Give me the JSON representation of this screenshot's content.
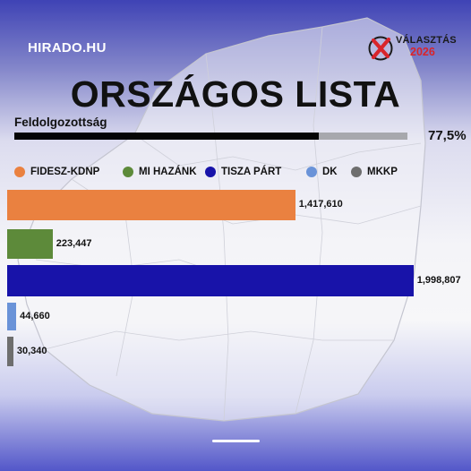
{
  "brand": {
    "name": "HIRADO.HU"
  },
  "logo": {
    "word": "VÁLASZTÁS",
    "year": "2026",
    "icon": "x-ballot-icon"
  },
  "title": "ORSZÁGOS LISTA",
  "progress": {
    "label": "Feldolgozottság",
    "value_text": "77,5%",
    "fraction": 0.775
  },
  "colors": {
    "FIDESZ-KDNP": "#ea8140",
    "MI HAZÁNK": "#5d8a3a",
    "TISZA PÁRT": "#1813a9",
    "DK": "#6a93d8",
    "MKKP": "#6e6e6e"
  },
  "chart_data": {
    "type": "bar",
    "orientation": "horizontal",
    "title": "ORSZÁGOS LISTA",
    "categories": [
      "FIDESZ-KDNP",
      "MI HAZÁNK",
      "TISZA PÁRT",
      "DK",
      "MKKP"
    ],
    "values": [
      1417610,
      223447,
      1998807,
      44660,
      30340
    ],
    "value_labels": [
      "1,417,610",
      "223,447",
      "1,998,807",
      "44,660",
      "30,340"
    ],
    "legend": [
      "FIDESZ-KDNP",
      "MI HAZÁNK",
      "TISZA PÁRT",
      "DK",
      "MKKP"
    ],
    "legend_position": "top",
    "grid": false,
    "xlim": [
      0,
      2000000
    ]
  }
}
